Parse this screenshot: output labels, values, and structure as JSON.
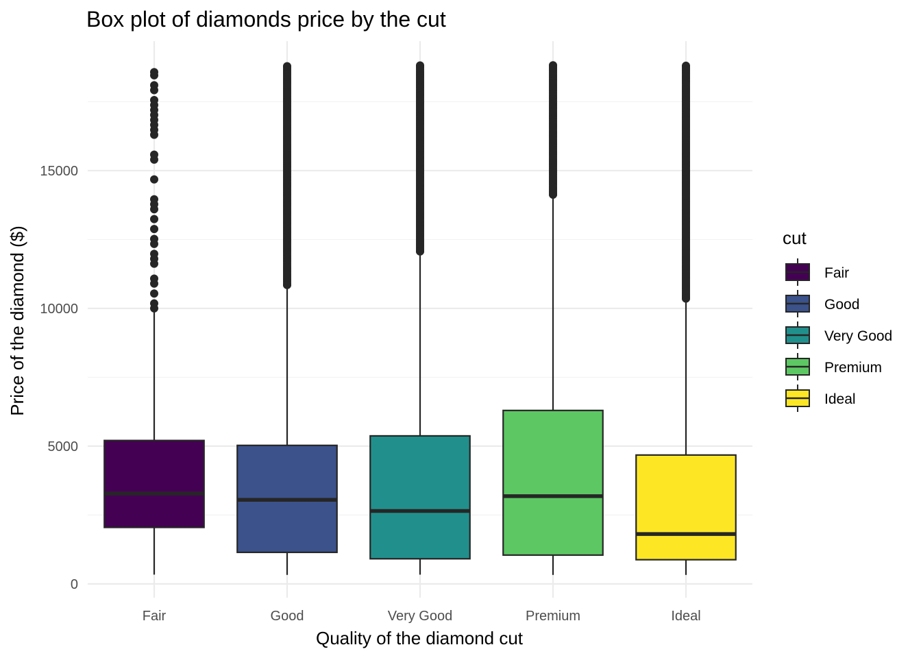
{
  "chart_data": {
    "type": "box",
    "title": "Box plot of diamonds price by the cut",
    "xlabel": "Quality of the diamond cut",
    "ylabel": "Price of the diamond ($)",
    "categories": [
      "Fair",
      "Good",
      "Very Good",
      "Premium",
      "Ideal"
    ],
    "ylim": [
      -500,
      19700
    ],
    "yticks": [
      0,
      5000,
      10000,
      15000
    ],
    "yticks_labels": [
      "0",
      "5000",
      "10000",
      "15000"
    ],
    "grid": true,
    "legend": {
      "title": "cut",
      "position": "right",
      "entries": [
        "Fair",
        "Good",
        "Very Good",
        "Premium",
        "Ideal"
      ]
    },
    "series": [
      {
        "category": "Fair",
        "color": "#440154",
        "whisker_low": 337,
        "q1": 2050,
        "median": 3282,
        "q3": 5206,
        "whisker_high": 9980,
        "outlier_range": [
          10000,
          18574
        ]
      },
      {
        "category": "Good",
        "color": "#3B528B",
        "whisker_low": 327,
        "q1": 1145,
        "median": 3050,
        "q3": 5028,
        "whisker_high": 10840,
        "outlier_range": [
          10850,
          18788
        ]
      },
      {
        "category": "Very Good",
        "color": "#21908C",
        "whisker_low": 336,
        "q1": 912,
        "median": 2648,
        "q3": 5373,
        "whisker_high": 12060,
        "outlier_range": [
          12070,
          18818
        ]
      },
      {
        "category": "Premium",
        "color": "#5DC863",
        "whisker_low": 326,
        "q1": 1046,
        "median": 3185,
        "q3": 6296,
        "whisker_high": 14120,
        "outlier_range": [
          14130,
          18823
        ]
      },
      {
        "category": "Ideal",
        "color": "#FDE725",
        "whisker_low": 326,
        "q1": 878,
        "median": 1810,
        "q3": 4678,
        "whisker_high": 10350,
        "outlier_range": [
          10360,
          18806
        ]
      }
    ]
  }
}
